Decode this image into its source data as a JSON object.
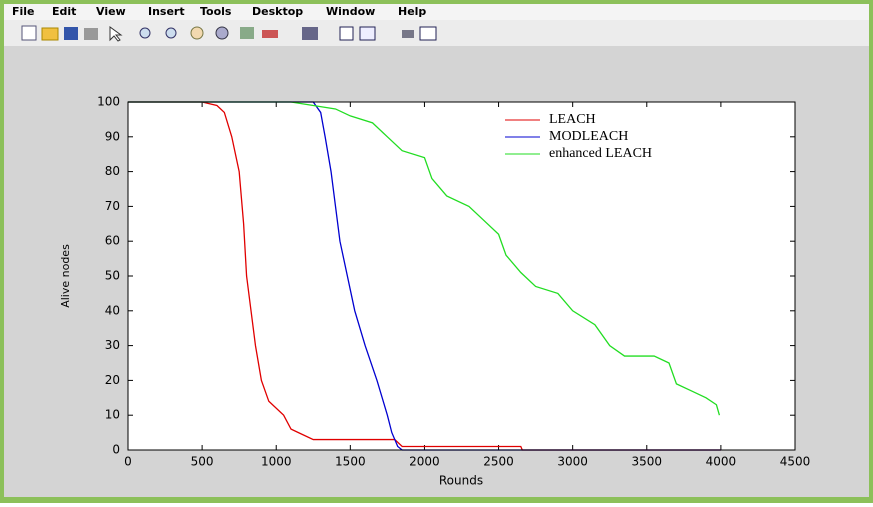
{
  "menu": [
    "File",
    "Edit",
    "View",
    "Insert",
    "Tools",
    "Desktop",
    "Window",
    "Help"
  ],
  "chart_data": {
    "type": "line",
    "xlabel": "Rounds",
    "ylabel": "Alive nodes",
    "xlim": [
      0,
      4500
    ],
    "ylim": [
      0,
      100
    ],
    "xticks": [
      0,
      500,
      1000,
      1500,
      2000,
      2500,
      3000,
      3500,
      4000,
      4500
    ],
    "yticks": [
      0,
      10,
      20,
      30,
      40,
      50,
      60,
      70,
      80,
      90,
      100
    ],
    "legend": "top-right",
    "series": [
      {
        "name": "LEACH",
        "color": "#e00000",
        "x": [
          0,
          500,
          600,
          650,
          700,
          750,
          780,
          800,
          830,
          860,
          900,
          950,
          1050,
          1100,
          1150,
          1250,
          1800,
          1850,
          2650,
          2660,
          4000
        ],
        "values": [
          100,
          100,
          99,
          97,
          90,
          80,
          65,
          50,
          40,
          30,
          20,
          14,
          10,
          6,
          5,
          3,
          3,
          1,
          1,
          0,
          0
        ]
      },
      {
        "name": "MODLEACH",
        "color": "#0000d0",
        "x": [
          0,
          1250,
          1300,
          1330,
          1370,
          1400,
          1430,
          1480,
          1530,
          1600,
          1680,
          1750,
          1780,
          1820,
          1850,
          4000
        ],
        "values": [
          100,
          100,
          97,
          90,
          80,
          70,
          60,
          50,
          40,
          30,
          20,
          10,
          5,
          1,
          0,
          0
        ]
      },
      {
        "name": "enhanced LEACH",
        "color": "#22dd22",
        "x": [
          0,
          1100,
          1250,
          1400,
          1500,
          1650,
          1750,
          1850,
          2000,
          2050,
          2150,
          2300,
          2400,
          2500,
          2550,
          2650,
          2750,
          2900,
          3000,
          3150,
          3250,
          3350,
          3550,
          3650,
          3700,
          3800,
          3900,
          3970,
          3990
        ],
        "values": [
          100,
          100,
          99,
          98,
          96,
          94,
          90,
          86,
          84,
          78,
          73,
          70,
          66,
          62,
          56,
          51,
          47,
          45,
          40,
          36,
          30,
          27,
          27,
          25,
          19,
          17,
          15,
          13,
          10
        ]
      }
    ]
  }
}
